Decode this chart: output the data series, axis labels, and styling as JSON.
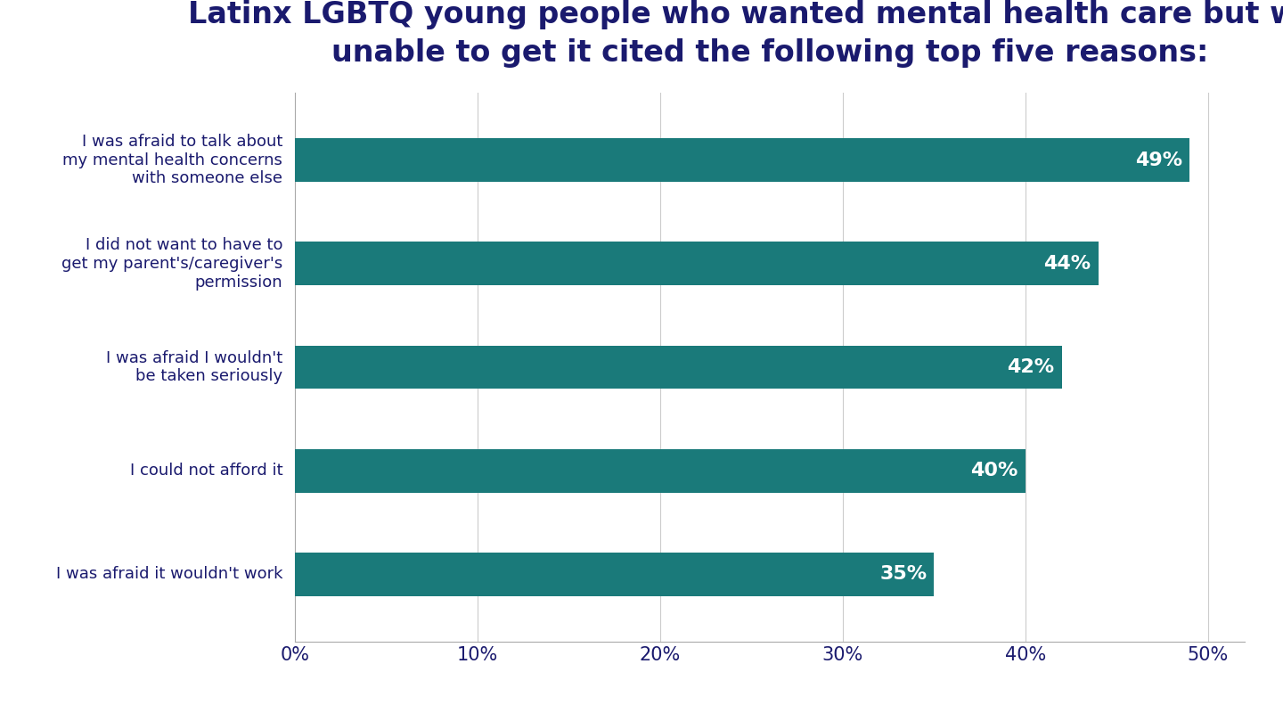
{
  "title": "Latinx LGBTQ young people who wanted mental health care but were\nunable to get it cited the following top five reasons:",
  "categories": [
    "I was afraid it wouldn't work",
    "I could not afford it",
    "I was afraid I wouldn't\nbe taken seriously",
    "I did not want to have to\nget my parent's/caregiver's\npermission",
    "I was afraid to talk about\nmy mental health concerns\nwith someone else"
  ],
  "values": [
    35,
    40,
    42,
    44,
    49
  ],
  "bar_color": "#1a7a7a",
  "label_color": "#ffffff",
  "title_color": "#1a1a6e",
  "tick_label_color": "#1a1a6e",
  "background_color": "#ffffff",
  "xlim": [
    0,
    52
  ],
  "xticks": [
    0,
    10,
    20,
    30,
    40,
    50
  ],
  "xticklabels": [
    "0%",
    "10%",
    "20%",
    "30%",
    "40%",
    "50%"
  ],
  "title_fontsize": 24,
  "bar_label_fontsize": 16,
  "tick_fontsize": 15,
  "ytick_fontsize": 13
}
